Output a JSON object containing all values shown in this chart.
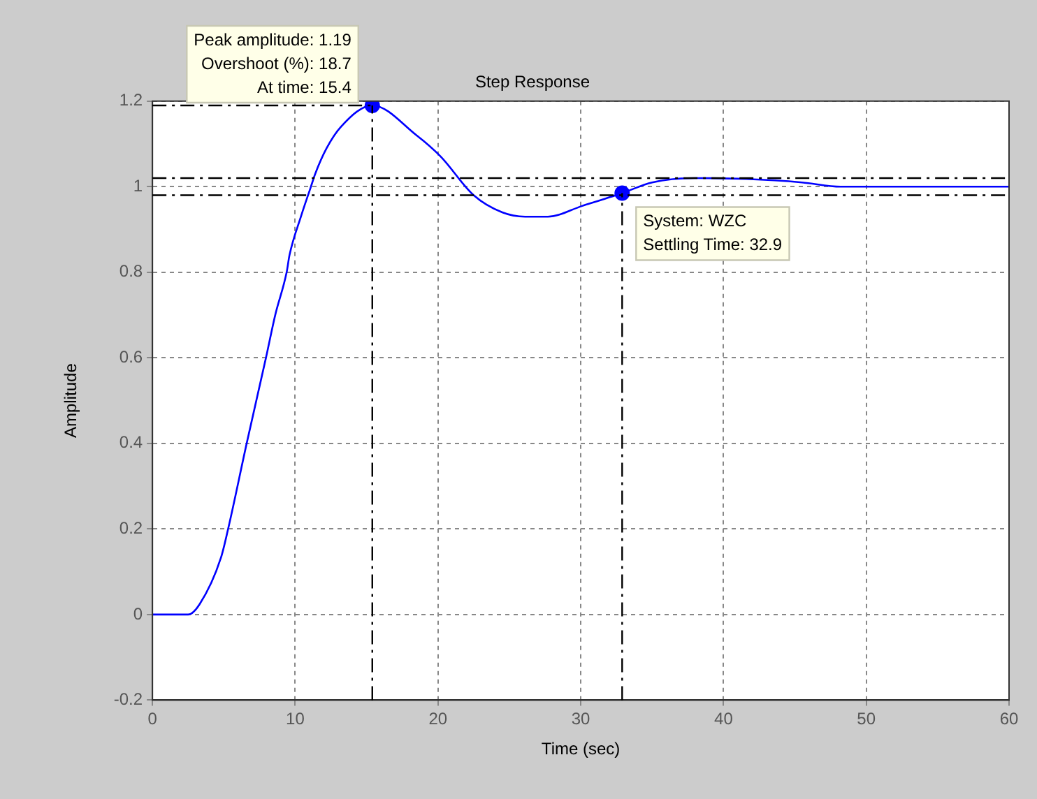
{
  "chart_data": {
    "type": "line",
    "title": "Step Response",
    "xlabel": "Time (sec)",
    "ylabel": "Amplitude",
    "xlim": [
      0,
      60
    ],
    "xticks": [
      0,
      10,
      20,
      30,
      40,
      50,
      60
    ],
    "ylim": [
      -0.2,
      1.2
    ],
    "yticks": [
      -0.2,
      0,
      0.2,
      0.4,
      0.6,
      0.8,
      1,
      1.2
    ],
    "grid": true,
    "legend": false,
    "series": [
      {
        "color": "#0000ff",
        "marker": "none",
        "x": [
          0,
          2.5,
          3.3,
          4.8,
          5.3,
          6.6,
          7.95,
          8.6,
          9.4,
          9.6,
          10.4,
          11.1,
          11.4,
          12.2,
          13.2,
          15.4,
          18.5,
          20.2,
          22.5,
          24.5,
          26.1,
          27.7,
          30.1,
          32.9,
          35,
          38,
          41.6,
          45.5,
          48.2,
          54.8,
          60
        ],
        "values": [
          0,
          0,
          0.024,
          0.133,
          0.2,
          0.4,
          0.6,
          0.7,
          0.8,
          0.84,
          0.93,
          1.0,
          1.03,
          1.09,
          1.14,
          1.19,
          1.12,
          1.07,
          0.98,
          0.94,
          0.93,
          0.93,
          0.955,
          0.985,
          1.01,
          1.02,
          1.018,
          1.01,
          1.0,
          1.0,
          1.0
        ]
      },
      {
        "type": "scatter",
        "color": "#0000ff",
        "marker": "circle",
        "x": [
          15.4,
          32.9
        ],
        "values": [
          1.19,
          0.985
        ]
      }
    ],
    "ref_lines": [
      {
        "axis": "y",
        "value": 1.19,
        "color": "#000000",
        "line_style": "dashdot"
      },
      {
        "axis": "x",
        "value": 15.4,
        "color": "#000000",
        "line_style": "dashdot"
      },
      {
        "axis": "x",
        "value": 32.9,
        "color": "#000000",
        "line_style": "dashdot"
      },
      {
        "axis": "y",
        "value": 1.02,
        "color": "#000000",
        "line_style": "dashdot"
      },
      {
        "axis": "y",
        "value": 0.98,
        "color": "#000000",
        "line_style": "dashdot"
      }
    ],
    "annotations": [
      {
        "text": "Peak amplitude: 1.19\nOvershoot (%): 18.7\nAt time: 15.4",
        "x": 15.4,
        "y": 1.19
      },
      {
        "text": "System: WZC\nSettling Time: 32.9",
        "x": 32.9,
        "y": 0.985
      }
    ]
  }
}
